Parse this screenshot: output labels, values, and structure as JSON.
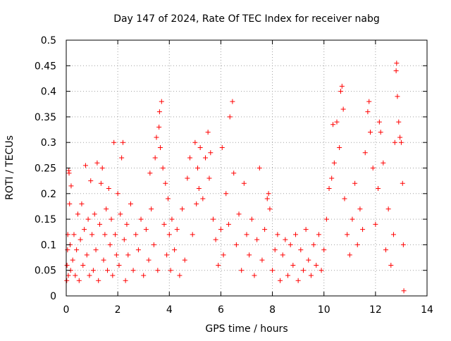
{
  "chart_data": {
    "type": "scatter",
    "title": "Day 147 of 2024, Rate Of TEC Index for receiver nabg",
    "xlabel": "GPS time / hours",
    "ylabel": "ROTI / TECUs",
    "xlim": [
      0,
      14
    ],
    "ylim": [
      0,
      0.5
    ],
    "x_ticks": [
      0,
      2,
      4,
      6,
      8,
      10,
      12,
      14
    ],
    "x_tick_labels": [
      "0",
      "2",
      "4",
      "6",
      "8",
      "10",
      "12",
      "14"
    ],
    "y_ticks": [
      0,
      0.05,
      0.1,
      0.15,
      0.2,
      0.25,
      0.3,
      0.35,
      0.4,
      0.45,
      0.5
    ],
    "y_tick_labels": [
      "0",
      "0.05",
      "0.1",
      "0.15",
      "0.2",
      "0.25",
      "0.3",
      "0.35",
      "0.4",
      "0.45",
      "0.5"
    ],
    "grid": true,
    "marker": "+",
    "color": "#ff0000",
    "series": [
      {
        "points": [
          [
            0.02,
            0.03
          ],
          [
            0.03,
            0.06
          ],
          [
            0.05,
            0.09
          ],
          [
            0.06,
            0.12
          ],
          [
            0.08,
            0.04
          ],
          [
            0.1,
            0.245
          ],
          [
            0.11,
            0.24
          ],
          [
            0.13,
            0.18
          ],
          [
            0.15,
            0.1
          ],
          [
            0.17,
            0.05
          ],
          [
            0.19,
            0.215
          ],
          [
            0.25,
            0.07
          ],
          [
            0.3,
            0.12
          ],
          [
            0.35,
            0.04
          ],
          [
            0.4,
            0.09
          ],
          [
            0.45,
            0.16
          ],
          [
            0.5,
            0.03
          ],
          [
            0.55,
            0.11
          ],
          [
            0.6,
            0.18
          ],
          [
            0.65,
            0.06
          ],
          [
            0.7,
            0.13
          ],
          [
            0.75,
            0.255
          ],
          [
            0.8,
            0.08
          ],
          [
            0.85,
            0.15
          ],
          [
            0.9,
            0.04
          ],
          [
            0.95,
            0.225
          ],
          [
            1.0,
            0.12
          ],
          [
            1.05,
            0.05
          ],
          [
            1.1,
            0.16
          ],
          [
            1.15,
            0.09
          ],
          [
            1.2,
            0.26
          ],
          [
            1.25,
            0.03
          ],
          [
            1.3,
            0.14
          ],
          [
            1.35,
            0.22
          ],
          [
            1.4,
            0.25
          ],
          [
            1.45,
            0.07
          ],
          [
            1.5,
            0.12
          ],
          [
            1.55,
            0.17
          ],
          [
            1.6,
            0.05
          ],
          [
            1.65,
            0.21
          ],
          [
            1.7,
            0.1
          ],
          [
            1.75,
            0.15
          ],
          [
            1.8,
            0.04
          ],
          [
            1.85,
            0.3
          ],
          [
            1.9,
            0.12
          ],
          [
            1.95,
            0.08
          ],
          [
            2.0,
            0.2
          ],
          [
            2.05,
            0.06
          ],
          [
            2.1,
            0.16
          ],
          [
            2.15,
            0.27
          ],
          [
            2.2,
            0.3
          ],
          [
            2.25,
            0.11
          ],
          [
            2.3,
            0.03
          ],
          [
            2.35,
            0.14
          ],
          [
            2.4,
            0.08
          ],
          [
            2.5,
            0.18
          ],
          [
            2.6,
            0.05
          ],
          [
            2.7,
            0.12
          ],
          [
            2.8,
            0.09
          ],
          [
            2.9,
            0.15
          ],
          [
            3.0,
            0.04
          ],
          [
            3.1,
            0.13
          ],
          [
            3.2,
            0.07
          ],
          [
            3.25,
            0.24
          ],
          [
            3.3,
            0.17
          ],
          [
            3.4,
            0.1
          ],
          [
            3.45,
            0.27
          ],
          [
            3.5,
            0.31
          ],
          [
            3.55,
            0.05
          ],
          [
            3.6,
            0.33
          ],
          [
            3.62,
            0.36
          ],
          [
            3.65,
            0.29
          ],
          [
            3.7,
            0.38
          ],
          [
            3.75,
            0.25
          ],
          [
            3.8,
            0.14
          ],
          [
            3.85,
            0.22
          ],
          [
            3.9,
            0.08
          ],
          [
            3.95,
            0.19
          ],
          [
            4.0,
            0.12
          ],
          [
            4.05,
            0.05
          ],
          [
            4.1,
            0.15
          ],
          [
            4.2,
            0.09
          ],
          [
            4.3,
            0.13
          ],
          [
            4.4,
            0.04
          ],
          [
            4.5,
            0.17
          ],
          [
            4.6,
            0.07
          ],
          [
            4.7,
            0.23
          ],
          [
            4.8,
            0.27
          ],
          [
            4.9,
            0.12
          ],
          [
            5.0,
            0.3
          ],
          [
            5.05,
            0.18
          ],
          [
            5.1,
            0.25
          ],
          [
            5.15,
            0.21
          ],
          [
            5.2,
            0.29
          ],
          [
            5.3,
            0.19
          ],
          [
            5.4,
            0.27
          ],
          [
            5.5,
            0.32
          ],
          [
            5.55,
            0.23
          ],
          [
            5.6,
            0.28
          ],
          [
            5.7,
            0.15
          ],
          [
            5.8,
            0.11
          ],
          [
            5.9,
            0.06
          ],
          [
            6.0,
            0.13
          ],
          [
            6.05,
            0.29
          ],
          [
            6.1,
            0.08
          ],
          [
            6.2,
            0.2
          ],
          [
            6.3,
            0.14
          ],
          [
            6.35,
            0.35
          ],
          [
            6.45,
            0.38
          ],
          [
            6.5,
            0.24
          ],
          [
            6.6,
            0.1
          ],
          [
            6.7,
            0.16
          ],
          [
            6.8,
            0.05
          ],
          [
            6.9,
            0.22
          ],
          [
            7.0,
            0.12
          ],
          [
            7.1,
            0.08
          ],
          [
            7.2,
            0.15
          ],
          [
            7.3,
            0.04
          ],
          [
            7.4,
            0.11
          ],
          [
            7.5,
            0.25
          ],
          [
            7.6,
            0.07
          ],
          [
            7.7,
            0.13
          ],
          [
            7.8,
            0.19
          ],
          [
            7.85,
            0.2
          ],
          [
            7.9,
            0.17
          ],
          [
            8.0,
            0.05
          ],
          [
            8.1,
            0.09
          ],
          [
            8.2,
            0.12
          ],
          [
            8.3,
            0.03
          ],
          [
            8.4,
            0.08
          ],
          [
            8.5,
            0.11
          ],
          [
            8.6,
            0.04
          ],
          [
            8.7,
            0.1
          ],
          [
            8.8,
            0.06
          ],
          [
            8.9,
            0.12
          ],
          [
            9.0,
            0.03
          ],
          [
            9.1,
            0.09
          ],
          [
            9.2,
            0.05
          ],
          [
            9.3,
            0.13
          ],
          [
            9.4,
            0.07
          ],
          [
            9.5,
            0.04
          ],
          [
            9.6,
            0.1
          ],
          [
            9.7,
            0.06
          ],
          [
            9.8,
            0.12
          ],
          [
            9.9,
            0.05
          ],
          [
            10.0,
            0.09
          ],
          [
            10.1,
            0.15
          ],
          [
            10.2,
            0.21
          ],
          [
            10.3,
            0.23
          ],
          [
            10.35,
            0.335
          ],
          [
            10.4,
            0.26
          ],
          [
            10.5,
            0.34
          ],
          [
            10.6,
            0.29
          ],
          [
            10.65,
            0.4
          ],
          [
            10.7,
            0.41
          ],
          [
            10.75,
            0.365
          ],
          [
            10.8,
            0.19
          ],
          [
            10.9,
            0.12
          ],
          [
            11.0,
            0.08
          ],
          [
            11.1,
            0.15
          ],
          [
            11.2,
            0.22
          ],
          [
            11.3,
            0.1
          ],
          [
            11.4,
            0.17
          ],
          [
            11.5,
            0.13
          ],
          [
            11.6,
            0.28
          ],
          [
            11.7,
            0.36
          ],
          [
            11.75,
            0.38
          ],
          [
            11.8,
            0.32
          ],
          [
            11.9,
            0.25
          ],
          [
            12.0,
            0.14
          ],
          [
            12.1,
            0.21
          ],
          [
            12.15,
            0.34
          ],
          [
            12.2,
            0.32
          ],
          [
            12.3,
            0.26
          ],
          [
            12.4,
            0.09
          ],
          [
            12.5,
            0.17
          ],
          [
            12.6,
            0.06
          ],
          [
            12.7,
            0.12
          ],
          [
            12.75,
            0.3
          ],
          [
            12.8,
            0.44
          ],
          [
            12.82,
            0.455
          ],
          [
            12.85,
            0.39
          ],
          [
            12.9,
            0.34
          ],
          [
            12.95,
            0.31
          ],
          [
            13.0,
            0.3
          ],
          [
            13.05,
            0.22
          ],
          [
            13.08,
            0.1
          ],
          [
            13.1,
            0.01
          ]
        ]
      }
    ]
  }
}
